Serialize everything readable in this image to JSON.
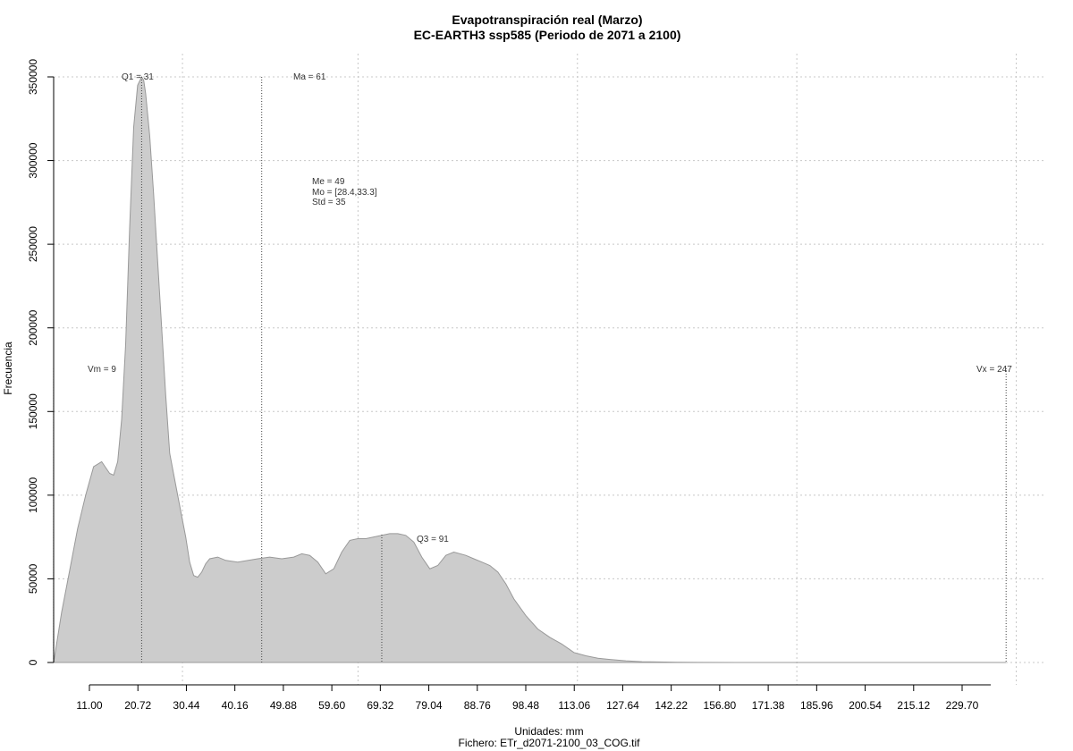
{
  "chart_data": {
    "type": "area",
    "title": "Evapotranspiración real (Marzo)",
    "subtitle": "EC-EARTH3 ssp585 (Periodo de 2071 a 2100)",
    "xlabel": "Unidades: mm",
    "file_label": "Fichero: ETr_d2071-2100_03_COG.tif",
    "ylabel": "Frecuencia",
    "xlim": [
      7,
      255
    ],
    "ylim": [
      0,
      350000
    ],
    "x_ticks": [
      "11.00",
      "20.72",
      "30.44",
      "40.16",
      "49.88",
      "59.60",
      "69.32",
      "79.04",
      "88.76",
      "98.48",
      "113.06",
      "127.64",
      "142.22",
      "156.80",
      "171.38",
      "185.96",
      "200.54",
      "215.12",
      "229.70"
    ],
    "y_ticks": [
      "0",
      "50000",
      "100000",
      "150000",
      "200000",
      "250000",
      "300000",
      "350000"
    ],
    "grid": true,
    "fill_color": "#cccccc",
    "stroke_color": "#999999",
    "series": [
      {
        "x": [
          9,
          11,
          13,
          15,
          17,
          19,
          21,
          23,
          24,
          25,
          26,
          27,
          28,
          29,
          30,
          31,
          31.5,
          32,
          33,
          34,
          35,
          36,
          37,
          38,
          40,
          42,
          43,
          44,
          45,
          46,
          47,
          48,
          50,
          52,
          55,
          60,
          63,
          66,
          69,
          71,
          73,
          75,
          77,
          79,
          81,
          83,
          85,
          87,
          89,
          91,
          93,
          95,
          97,
          99,
          101,
          103,
          105,
          107,
          109,
          112,
          114,
          116,
          118,
          120,
          122,
          124,
          127,
          130,
          133,
          136,
          139,
          142,
          145,
          148,
          152,
          156,
          160,
          165,
          170,
          180,
          200,
          220,
          247
        ],
        "y": [
          0,
          30000,
          55000,
          80000,
          100000,
          117000,
          120000,
          113000,
          112000,
          120000,
          145000,
          190000,
          260000,
          320000,
          345000,
          350000,
          348000,
          340000,
          315000,
          280000,
          240000,
          200000,
          160000,
          125000,
          100000,
          75000,
          60000,
          52000,
          51000,
          54000,
          59000,
          62000,
          63000,
          61000,
          60000,
          62000,
          63000,
          62000,
          63000,
          65000,
          64000,
          60000,
          53000,
          56000,
          66000,
          73000,
          74000,
          74000,
          75000,
          76000,
          77000,
          77000,
          76000,
          72000,
          63000,
          56000,
          58000,
          64000,
          66000,
          64000,
          62000,
          60000,
          58000,
          54000,
          47000,
          38000,
          28000,
          20000,
          15000,
          11000,
          6000,
          4000,
          2500,
          1800,
          1000,
          500,
          300,
          150,
          50,
          20,
          10,
          5,
          0
        ]
      }
    ],
    "annotations": {
      "q1": {
        "label": "Q1 = 31",
        "value": 31
      },
      "ma": {
        "label": "Ma = 61",
        "value": 61
      },
      "q3": {
        "label": "Q3 = 91",
        "value": 91
      },
      "vm": {
        "label": "Vm = 9",
        "value": 9
      },
      "vx": {
        "label": "Vx = 247",
        "value": 247
      },
      "stats": [
        "Me = 49",
        "Mo = [28.4,33.3]",
        "Std = 35"
      ]
    }
  }
}
